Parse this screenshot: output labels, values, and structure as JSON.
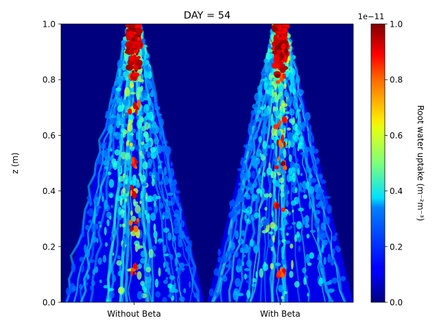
{
  "chart_data": {
    "type": "heatmap",
    "title": "DAY = 54",
    "xlabel": "",
    "ylabel": "z (m)",
    "categories": [
      "Without Beta",
      "With Beta"
    ],
    "ylim": [
      0.0,
      1.0
    ],
    "yticks": [
      "0.0",
      "0.2",
      "0.4",
      "0.6",
      "0.8",
      "1.0"
    ],
    "colorbar": {
      "label": "Root water uptake (m⁻²m⁻³)",
      "offset_text": "1e−11",
      "range": [
        0.0,
        1.0
      ],
      "ticks": [
        "0.0",
        "0.2",
        "0.4",
        "0.6",
        "0.8",
        "1.0"
      ],
      "colormap": "jet"
    },
    "panels": [
      {
        "name": "Without Beta",
        "hotspot_depths": [
          0.97,
          0.92,
          0.87,
          0.8,
          0.7,
          0.5,
          0.4,
          0.28,
          0.12
        ],
        "spread_at_bottom": 0.88
      },
      {
        "name": "With Beta",
        "hotspot_depths": [
          0.97,
          0.93,
          0.88,
          0.8,
          0.64,
          0.58,
          0.5,
          0.35,
          0.1
        ],
        "spread_at_bottom": 0.92
      }
    ]
  }
}
